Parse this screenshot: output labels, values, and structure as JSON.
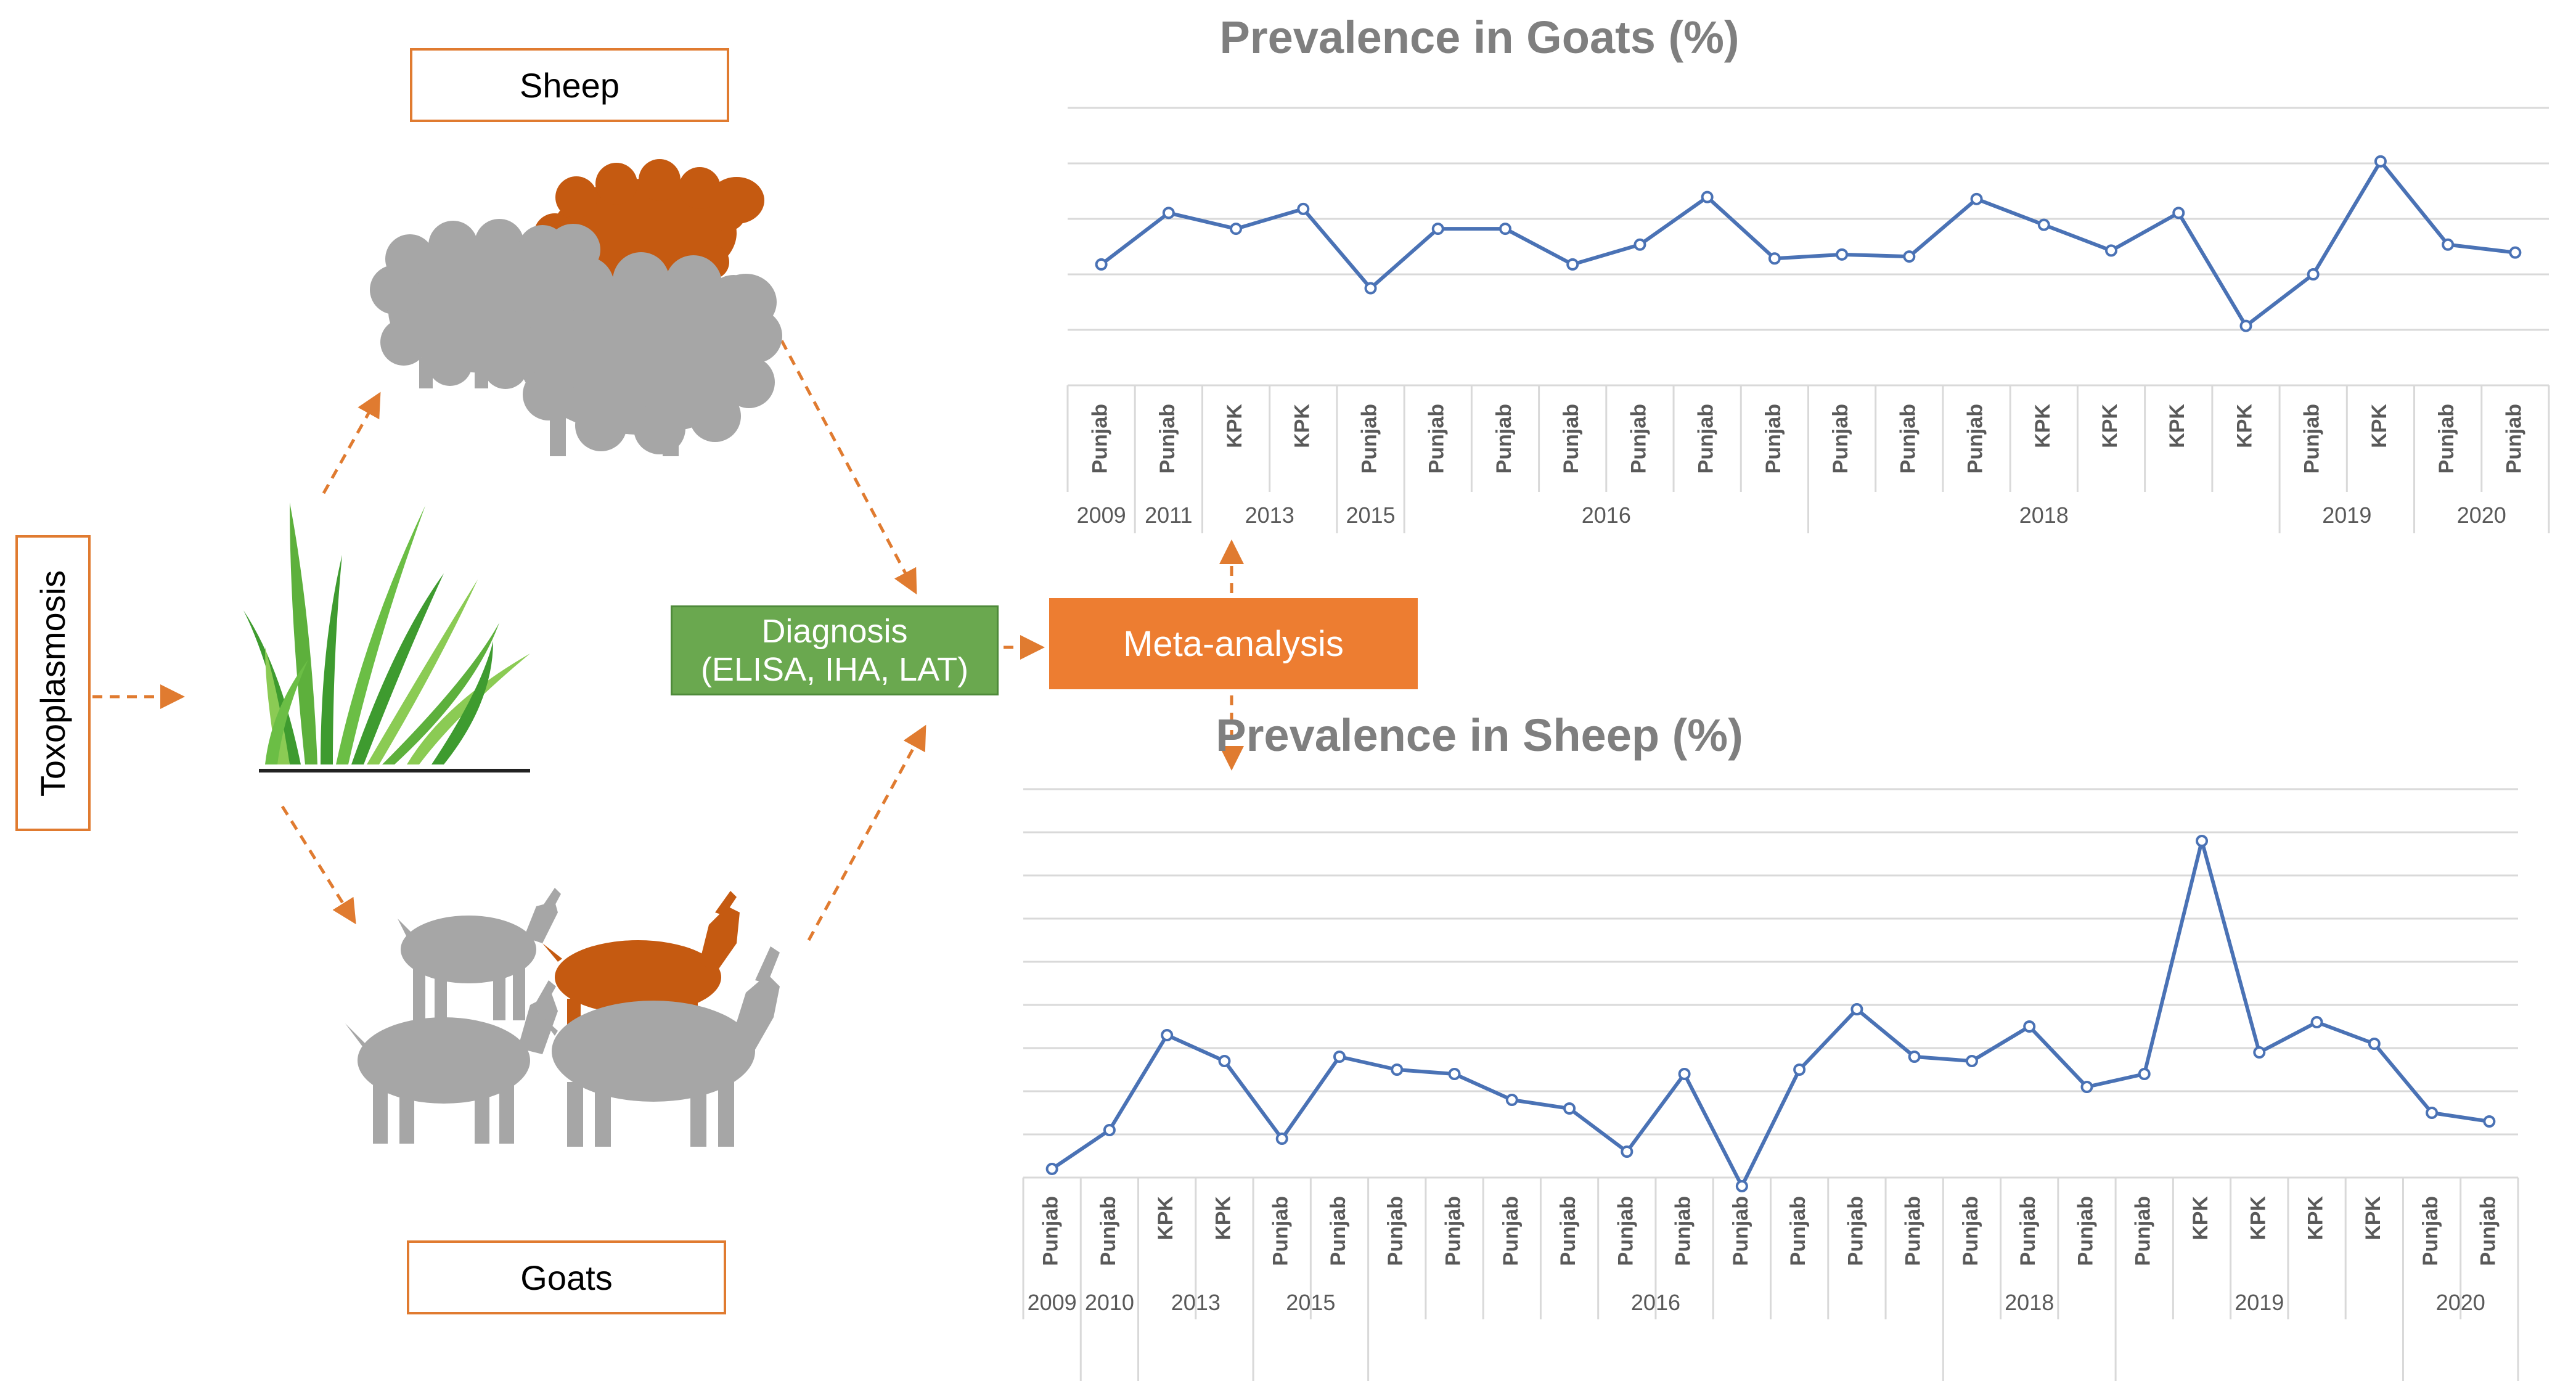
{
  "labels": {
    "sheep": "Sheep",
    "goats": "Goats",
    "toxoplasmosis": "Toxoplasmosis",
    "diagnosis_line1": "Diagnosis",
    "diagnosis_line2": "(ELISA, IHA, LAT)",
    "meta_analysis": "Meta-analysis"
  },
  "colors": {
    "arrow": "#E07B30",
    "line": "#4A72B5",
    "grid": "#D9D9D9",
    "title": "#7F7F7F",
    "sheep_grey": "#A6A6A6",
    "accent_animal": "#C55A11",
    "grass_dark": "#3E9B2F",
    "grass_light": "#8BCB54"
  },
  "icons": [
    "sheep-illustration",
    "goat-illustration",
    "grass-illustration"
  ],
  "chart_data": [
    {
      "type": "line",
      "title": "Prevalence in Goats (%)",
      "categories": [
        "Punjab",
        "Punjab",
        "KPK",
        "KPK",
        "Punjab",
        "Punjab",
        "Punjab",
        "Punjab",
        "Punjab",
        "Punjab",
        "Punjab",
        "Punjab",
        "Punjab",
        "Punjab",
        "KPK",
        "KPK",
        "KPK",
        "KPK",
        "Punjab",
        "KPK",
        "Punjab",
        "Punjab"
      ],
      "years": [
        {
          "label": "2009",
          "count": 1
        },
        {
          "label": "2011",
          "count": 1
        },
        {
          "label": "2013",
          "count": 2
        },
        {
          "label": "2015",
          "count": 1
        },
        {
          "label": "2016",
          "count": 6
        },
        {
          "label": "2018",
          "count": 7
        },
        {
          "label": "2019",
          "count": 2
        },
        {
          "label": "2020",
          "count": 2
        }
      ],
      "values": [
        30.5,
        43.5,
        39.5,
        44.5,
        24.5,
        39.5,
        39.5,
        30.5,
        35.5,
        47.5,
        32,
        33,
        32.5,
        47,
        40.5,
        34,
        43.5,
        15,
        28,
        56.5,
        35.5,
        33.5
      ],
      "ylim": [
        0,
        70
      ],
      "grid": true
    },
    {
      "type": "line",
      "title": "Prevalence in Sheep (%)",
      "categories": [
        "Punjab",
        "Punjab",
        "KPK",
        "KPK",
        "Punjab",
        "Punjab",
        "Punjab",
        "Punjab",
        "Punjab",
        "Punjab",
        "Punjab",
        "Punjab",
        "Punjab",
        "Punjab",
        "Punjab",
        "Punjab",
        "Punjab",
        "Punjab",
        "Punjab",
        "Punjab",
        "KPK",
        "KPK",
        "KPK",
        "KPK",
        "Punjab",
        "Punjab"
      ],
      "years": [
        {
          "label": "2009",
          "count": 1
        },
        {
          "label": "2010",
          "count": 1
        },
        {
          "label": "2013",
          "count": 2
        },
        {
          "label": "2015",
          "count": 2
        },
        {
          "label": "2016",
          "count": 10
        },
        {
          "label": "2018",
          "count": 3
        },
        {
          "label": "2019",
          "count": 5
        },
        {
          "label": "2020",
          "count": 2
        }
      ],
      "values": [
        2,
        11,
        33,
        27,
        9,
        28,
        25,
        24,
        18,
        16,
        6,
        24,
        -2,
        25,
        39,
        28,
        27,
        35,
        21,
        24,
        78,
        29,
        36,
        31,
        15,
        13
      ],
      "ylim": [
        0,
        90
      ],
      "grid": true
    }
  ]
}
